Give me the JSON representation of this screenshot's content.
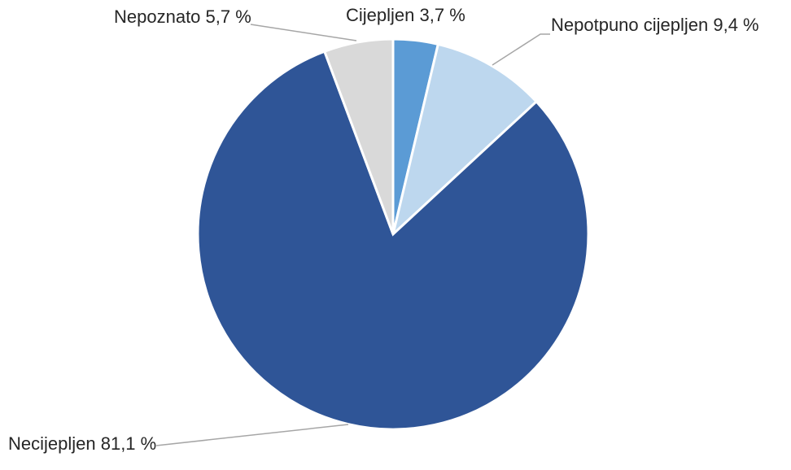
{
  "chart_data": {
    "type": "pie",
    "start_angle_deg": 0,
    "direction": "clockwise",
    "slices": [
      {
        "label": "Cijepljen",
        "value": 3.7,
        "display": "Cijepljen 3,7 %",
        "color": "#5b9bd5"
      },
      {
        "label": "Nepotpuno cijepljen",
        "value": 9.4,
        "display": "Nepotpuno cijepljen 9,4 %",
        "color": "#bdd7ee"
      },
      {
        "label": "Necijepljen",
        "value": 81.1,
        "display": "Necijepljen 81,1 %",
        "color": "#2f5597"
      },
      {
        "label": "Nepoznato",
        "value": 5.7,
        "display": "Nepoznato 5,7 %",
        "color": "#d9d9d9"
      }
    ]
  }
}
